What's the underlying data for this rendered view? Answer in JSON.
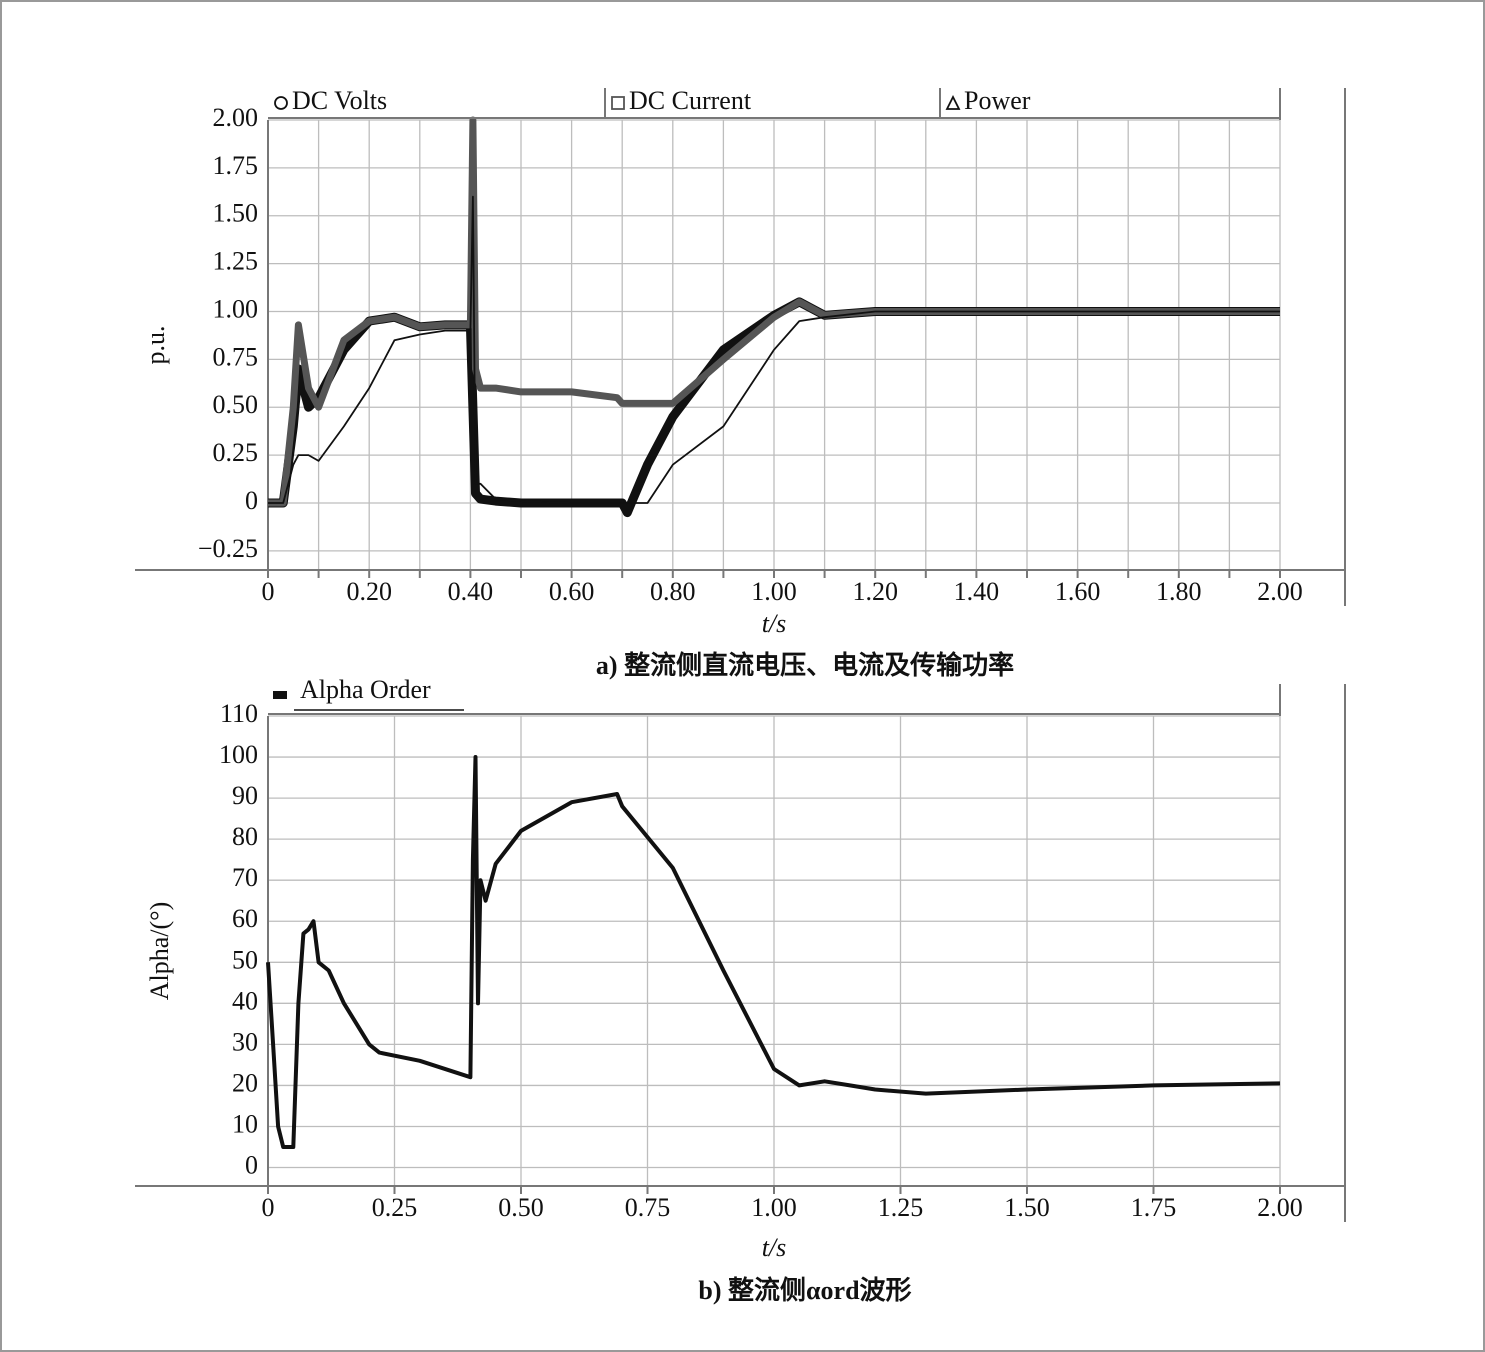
{
  "chart_data": [
    {
      "type": "line",
      "xlabel": "t/s",
      "ylabel": "p.u.",
      "caption": "a) 整流侧直流电压、电流及传输功率",
      "x": [
        0,
        0.03,
        0.05,
        0.06,
        0.08,
        0.1,
        0.15,
        0.2,
        0.25,
        0.3,
        0.35,
        0.4,
        0.405,
        0.41,
        0.42,
        0.45,
        0.5,
        0.6,
        0.69,
        0.7,
        0.71,
        0.75,
        0.8,
        0.9,
        1.0,
        1.05,
        1.1,
        1.2,
        1.4,
        1.6,
        1.8,
        2.0
      ],
      "series": [
        {
          "name": "DC Volts",
          "marker": "circle",
          "color": "#111111",
          "width": 9,
          "values": [
            0,
            0,
            0.4,
            0.7,
            0.5,
            0.55,
            0.8,
            0.95,
            0.97,
            0.92,
            0.93,
            0.93,
            0.5,
            0.05,
            0.02,
            0.01,
            0,
            0,
            0,
            0,
            -0.05,
            0.2,
            0.45,
            0.8,
            0.98,
            1.05,
            0.98,
            1.0,
            1.0,
            1.0,
            1.0,
            1.0
          ]
        },
        {
          "name": "DC Current",
          "marker": "square",
          "color": "#555555",
          "width": 7,
          "values": [
            0,
            0,
            0.5,
            0.93,
            0.6,
            0.5,
            0.85,
            0.95,
            0.97,
            0.92,
            0.93,
            0.93,
            2.0,
            0.7,
            0.6,
            0.6,
            0.58,
            0.58,
            0.55,
            0.52,
            0.52,
            0.52,
            0.52,
            0.75,
            0.97,
            1.05,
            0.98,
            1.0,
            1.0,
            1.0,
            1.0,
            1.0
          ]
        },
        {
          "name": "Power",
          "marker": "triangle",
          "color": "#111111",
          "width": 1.8,
          "values": [
            0,
            0,
            0.2,
            0.25,
            0.25,
            0.22,
            0.4,
            0.6,
            0.85,
            0.88,
            0.9,
            0.9,
            1.6,
            0.1,
            0.1,
            0.02,
            0.01,
            0,
            0,
            0,
            0,
            0,
            0.2,
            0.4,
            0.8,
            0.95,
            0.97,
            1.0,
            1.0,
            1.0,
            1.0,
            1.0
          ]
        }
      ],
      "xlim": [
        0,
        2.0
      ],
      "xticks": [
        0,
        {
          "value": 0.2,
          "label": "0.20"
        },
        {
          "value": 0.4,
          "label": "0.40"
        },
        {
          "value": 0.6,
          "label": "0.60"
        },
        {
          "value": 0.8,
          "label": "0.80"
        },
        {
          "value": 1.0,
          "label": "1.00"
        },
        {
          "value": 1.2,
          "label": "1.20"
        },
        {
          "value": 1.4,
          "label": "1.40"
        },
        {
          "value": 1.6,
          "label": "1.60"
        },
        {
          "value": 1.8,
          "label": "1.80"
        },
        {
          "value": 2.0,
          "label": "2.00"
        }
      ],
      "ylim": [
        -0.35,
        2.0
      ],
      "yticks": [
        {
          "value": -0.25,
          "label": "−0.25"
        },
        0,
        0.25,
        {
          "value": 0.5,
          "label": "0.50"
        },
        0.75,
        {
          "value": 1.0,
          "label": "1.00"
        },
        1.25,
        {
          "value": 1.5,
          "label": "1.50"
        },
        1.75,
        {
          "value": 2.0,
          "label": "2.00"
        }
      ],
      "grid": true
    },
    {
      "type": "line",
      "xlabel": "t/s",
      "ylabel": "Alpha/(°)",
      "caption": "b) 整流侧αord波形",
      "x": [
        0,
        0.01,
        0.02,
        0.03,
        0.04,
        0.05,
        0.06,
        0.07,
        0.08,
        0.09,
        0.1,
        0.12,
        0.15,
        0.2,
        0.22,
        0.3,
        0.4,
        0.405,
        0.41,
        0.415,
        0.42,
        0.43,
        0.45,
        0.5,
        0.6,
        0.69,
        0.7,
        0.8,
        0.9,
        1.0,
        1.05,
        1.1,
        1.15,
        1.2,
        1.3,
        1.5,
        1.75,
        2.0
      ],
      "series": [
        {
          "name": "Alpha Order",
          "marker": "rect",
          "color": "#111111",
          "width": 4,
          "values": [
            50,
            30,
            10,
            5,
            5,
            5,
            40,
            57,
            58,
            60,
            50,
            48,
            40,
            30,
            28,
            26,
            22,
            75,
            100,
            40,
            70,
            65,
            74,
            82,
            89,
            91,
            88,
            73,
            48,
            24,
            20,
            21,
            20,
            19,
            18,
            19,
            20,
            20.5
          ]
        }
      ],
      "xlim": [
        0,
        2.0
      ],
      "xticks": [
        0,
        0.25,
        {
          "value": 0.5,
          "label": "0.50"
        },
        0.75,
        {
          "value": 1.0,
          "label": "1.00"
        },
        1.25,
        {
          "value": 1.5,
          "label": "1.50"
        },
        1.75,
        {
          "value": 2.0,
          "label": "2.00"
        }
      ],
      "ylim": [
        -4.5,
        110
      ],
      "yticks": [
        0,
        10,
        20,
        30,
        40,
        50,
        60,
        70,
        80,
        90,
        100,
        110
      ],
      "grid": true
    }
  ]
}
